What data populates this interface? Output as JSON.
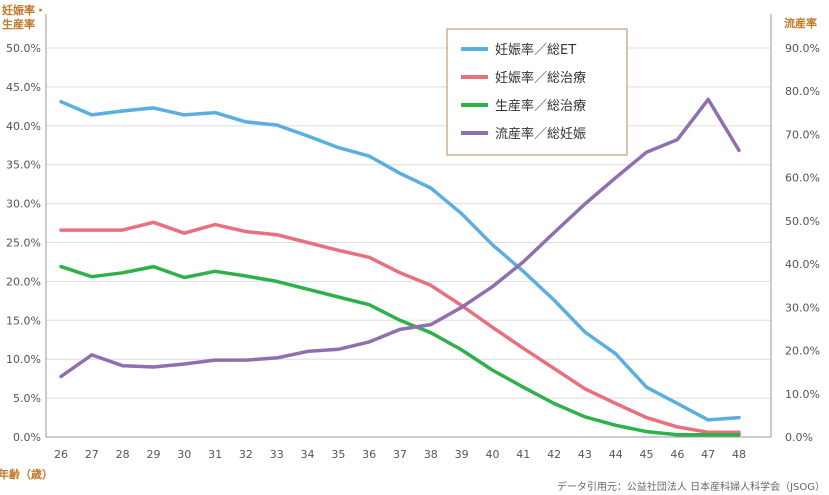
{
  "chart_data": {
    "type": "line",
    "x": [
      26,
      27,
      28,
      29,
      30,
      31,
      32,
      33,
      34,
      35,
      36,
      37,
      38,
      39,
      40,
      41,
      42,
      43,
      44,
      45,
      46,
      47,
      48
    ],
    "xlabel": "年齢（歳）",
    "ylabel_left": [
      "妊娠率・",
      "生産率"
    ],
    "ylabel_right": "流産率",
    "ylim_left": [
      0,
      50
    ],
    "ylim_right": [
      0,
      90
    ],
    "yticks_left": [
      "0.0%",
      "5.0%",
      "10.0%",
      "15.0%",
      "20.0%",
      "25.0%",
      "30.0%",
      "35.0%",
      "40.0%",
      "45.0%",
      "50.0%"
    ],
    "yticks_right": [
      "0.0%",
      "10.0%",
      "20.0%",
      "30.0%",
      "40.0%",
      "50.0%",
      "60.0%",
      "70.0%",
      "80.0%",
      "90.0%"
    ],
    "grid": "horizontal",
    "legend_position": "top-right",
    "series": [
      {
        "name": "妊娠率／総ET",
        "axis": "left",
        "color": "#5aaee0",
        "values": [
          43.1,
          41.4,
          41.9,
          42.3,
          41.4,
          41.7,
          40.5,
          40.1,
          38.7,
          37.2,
          36.1,
          33.9,
          32.0,
          28.7,
          24.7,
          21.3,
          17.6,
          13.5,
          10.7,
          6.4,
          4.3,
          2.2,
          2.5
        ]
      },
      {
        "name": "妊娠率／総治療",
        "axis": "left",
        "color": "#e8707c",
        "values": [
          26.6,
          26.6,
          26.6,
          27.6,
          26.2,
          27.3,
          26.4,
          26.0,
          25.0,
          24.0,
          23.1,
          21.1,
          19.5,
          16.9,
          14.1,
          11.4,
          8.8,
          6.2,
          4.3,
          2.5,
          1.3,
          0.6,
          0.6
        ]
      },
      {
        "name": "生産率／総治療",
        "axis": "left",
        "color": "#2eb14a",
        "values": [
          21.9,
          20.6,
          21.1,
          21.9,
          20.5,
          21.3,
          20.7,
          20.0,
          19.0,
          18.0,
          17.0,
          15.0,
          13.4,
          11.2,
          8.6,
          6.4,
          4.3,
          2.6,
          1.5,
          0.7,
          0.3,
          0.3,
          0.3
        ]
      },
      {
        "name": "流産率／総妊娠",
        "axis": "right",
        "color": "#8f6fb0",
        "values": [
          14.0,
          19.0,
          16.5,
          16.2,
          16.9,
          17.8,
          17.8,
          18.3,
          19.8,
          20.3,
          22.0,
          24.9,
          26.0,
          30.0,
          34.8,
          40.5,
          47.3,
          53.9,
          60.0,
          65.9,
          68.8,
          78.1,
          66.3
        ]
      }
    ]
  },
  "source_note": "データ引用元：公益社団法人 日本産科婦人科学会（JSOG）"
}
